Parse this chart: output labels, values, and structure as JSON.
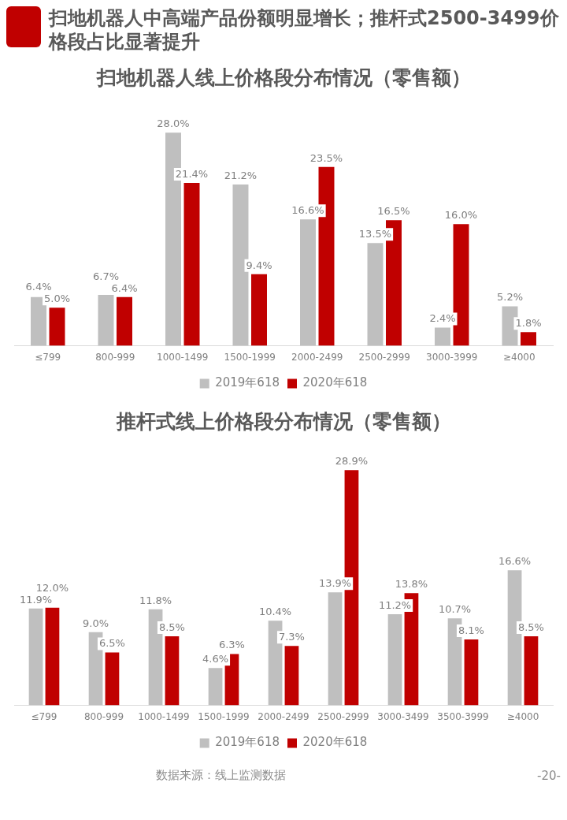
{
  "chart_data": [
    {
      "type": "other",
      "title": "扫地机器人中高端产品份额明显增长；推杆式2500-3499价格段占比显著提升"
    },
    {
      "type": "bar",
      "title": "扫地机器人线上价格段分布情况（零售额）",
      "categories": [
        "≤799",
        "800-999",
        "1000-1499",
        "1500-1999",
        "2000-2499",
        "2500-2999",
        "3000-3999",
        "≥4000"
      ],
      "series": [
        {
          "name": "2019年618",
          "color": "#bfbfbf",
          "values": [
            6.4,
            6.7,
            28.0,
            21.2,
            16.6,
            13.5,
            2.4,
            5.2
          ],
          "value_labels": [
            "6.4%",
            "6.7%",
            "28.0%",
            "21.2%",
            "16.6%",
            "13.5%",
            "2.4%",
            "5.2%"
          ]
        },
        {
          "name": "2020年618",
          "color": "#c00000",
          "values": [
            5.0,
            6.4,
            21.4,
            9.4,
            23.5,
            16.5,
            16.0,
            1.8
          ],
          "value_labels": [
            "5.0%",
            "6.4%",
            "21.4%",
            "9.4%",
            "23.5%",
            "16.5%",
            "16.0%",
            "1.8%"
          ]
        }
      ],
      "legend": "bottom",
      "tick_labels": "x"
    },
    {
      "type": "bar",
      "title": "推杆式线上价格段分布情况（零售额）",
      "categories": [
        "≤799",
        "800-999",
        "1000-1499",
        "1500-1999",
        "2000-2499",
        "2500-2999",
        "3000-3499",
        "3500-3999",
        "≥4000"
      ],
      "series": [
        {
          "name": "2019年618",
          "color": "#bfbfbf",
          "values": [
            11.9,
            9.0,
            11.8,
            4.6,
            10.4,
            13.9,
            11.2,
            10.7,
            16.6
          ],
          "value_labels": [
            "11.9%",
            "9.0%",
            "11.8%",
            "4.6%",
            "10.4%",
            "13.9%",
            "11.2%",
            "10.7%",
            "16.6%"
          ]
        },
        {
          "name": "2020年618",
          "color": "#c00000",
          "values": [
            12.0,
            6.5,
            8.5,
            6.3,
            7.3,
            28.9,
            13.8,
            8.1,
            8.5
          ],
          "value_labels": [
            "12.0%",
            "6.5%",
            "8.5%",
            "6.3%",
            "7.3%",
            "28.9%",
            "13.8%",
            "8.1%",
            "8.5%"
          ]
        }
      ],
      "legend": "bottom",
      "tick_labels": "x"
    },
    {
      "type": "other",
      "annotations": [
        "数据来源：线上监测数据",
        "-20-"
      ]
    }
  ]
}
